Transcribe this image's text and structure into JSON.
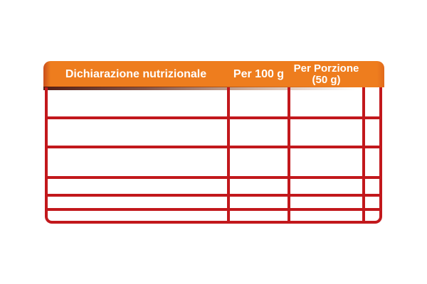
{
  "header": {
    "col1": "Dichiarazione nutrizionale",
    "col2": "Per 100 g",
    "col3_line1": "Per Porzione",
    "col3_line2": "(50 g)"
  },
  "table": {
    "columns": [
      "Dichiarazione nutrizionale",
      "Per 100 g",
      "Per Porzione (50 g)",
      ""
    ],
    "rows": [
      [
        "",
        "",
        "",
        ""
      ],
      [
        "",
        "",
        "",
        ""
      ],
      [
        "",
        "",
        "",
        ""
      ],
      [
        "",
        "",
        "",
        ""
      ],
      [
        "",
        "",
        "",
        ""
      ],
      [
        "",
        "",
        "",
        ""
      ]
    ]
  },
  "colors": {
    "background": "#FFFFFF",
    "header_orange": "#EE7D1E",
    "header_orange_edge": "#C94E1C",
    "grid_red": "#C2181C",
    "header_text": "#FFFFFF",
    "header_shadow": "#4A140B"
  }
}
